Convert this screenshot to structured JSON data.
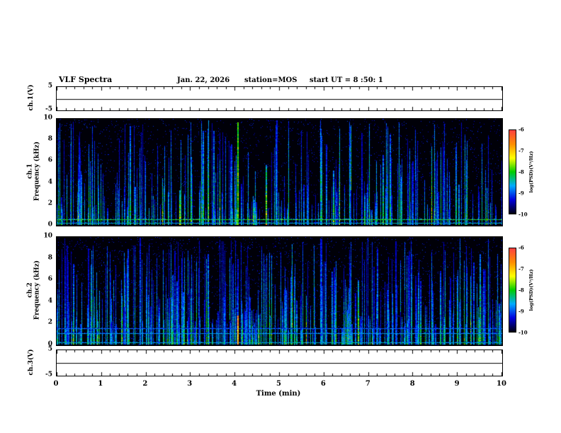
{
  "header": {
    "title": "VLF Spectra",
    "date": "Jan. 22, 2026",
    "station": "station=MOS",
    "start_ut": "start UT =  8 :50: 1"
  },
  "panels": {
    "ch1v_label": "ch.1(V)",
    "spec1_label_line1": "ch.1",
    "spec1_label_line2": "Frequency (kHz)",
    "spec2_label_line1": "ch.2",
    "spec2_label_line2": "Frequency (kHz)",
    "ch3v_label": "ch.3(V)"
  },
  "axes": {
    "xlabel": "Time (min)",
    "time_ticks": [
      "0",
      "1",
      "2",
      "3",
      "4",
      "5",
      "6",
      "7",
      "8",
      "9",
      "10"
    ],
    "strip_yticks": [
      "5",
      "-5"
    ],
    "spec_yticks": [
      "10",
      "8",
      "6",
      "4",
      "2",
      "0"
    ],
    "colorbar_ticks": [
      "-6",
      "-7",
      "-8",
      "-9",
      "-10"
    ],
    "colorbar_label": "log(PSD)(V²/Hz)"
  },
  "colors": {
    "background": "#ffffff",
    "spectrogram_background": "#000008",
    "colormap_high_to_low": [
      "#ff4040",
      "#ff8c00",
      "#ffff00",
      "#00cc00",
      "#00aaff",
      "#0000dd",
      "#000010"
    ]
  },
  "chart_data": [
    {
      "type": "line",
      "name": "ch.1(V) waveform strip",
      "ylabel": "ch.1(V)",
      "xlim": [
        0,
        10
      ],
      "ylim": [
        -5,
        5
      ],
      "x": [
        0,
        10
      ],
      "y": [
        0,
        0
      ],
      "description": "flat quiescent voltage trace at ~0 V across full 10 min"
    },
    {
      "type": "heatmap",
      "name": "ch.1 spectrogram",
      "ylabel": "ch.1 Frequency (kHz)",
      "xlim": [
        0,
        10
      ],
      "ylim": [
        0,
        10
      ],
      "zlabel": "log(PSD)(V²/Hz)",
      "zlim": [
        -10,
        -6
      ],
      "description": "dense vertical broadband impulsive streaks (sferics), mostly blue with green cores, over black background; persistent narrowband line near 0.5 kHz; bright full-height burst near 4.05 min",
      "render": {
        "seed": 20260122,
        "streaks": 300,
        "speckle": 2600,
        "hlines": [
          {
            "khz": 0.55,
            "v": 0.6
          },
          {
            "khz": 0.2,
            "v": 0.45
          }
        ],
        "marks": [
          {
            "x": 0.405,
            "h": 0.97,
            "v": 0.62,
            "w": 2
          }
        ]
      }
    },
    {
      "type": "heatmap",
      "name": "ch.2 spectrogram",
      "ylabel": "ch.2 Frequency (kHz)",
      "xlim": [
        0,
        10
      ],
      "ylim": [
        0,
        10
      ],
      "zlabel": "log(PSD)(V²/Hz)",
      "zlim": [
        -10,
        -6
      ],
      "description": "denser broadband streaks than ch.1; narrowband lines near 1.0 and 1.5 kHz; strong red low-frequency burst near 4.05 min",
      "render": {
        "seed": 987654,
        "streaks": 400,
        "speckle": 3400,
        "hlines": [
          {
            "khz": 1.05,
            "v": 0.4
          },
          {
            "khz": 1.5,
            "v": 0.33
          },
          {
            "khz": 0.2,
            "v": 0.45
          }
        ],
        "marks": [
          {
            "x": 0.405,
            "h": 0.28,
            "v": 0.95,
            "w": 2
          }
        ]
      }
    },
    {
      "type": "line",
      "name": "ch.3(V) waveform strip",
      "ylabel": "ch.3(V)",
      "xlim": [
        0,
        10
      ],
      "ylim": [
        -5,
        5
      ],
      "x": [
        0,
        10
      ],
      "y": [
        0,
        0
      ],
      "description": "flat quiescent voltage trace at ~0 V across full 10 min"
    }
  ]
}
